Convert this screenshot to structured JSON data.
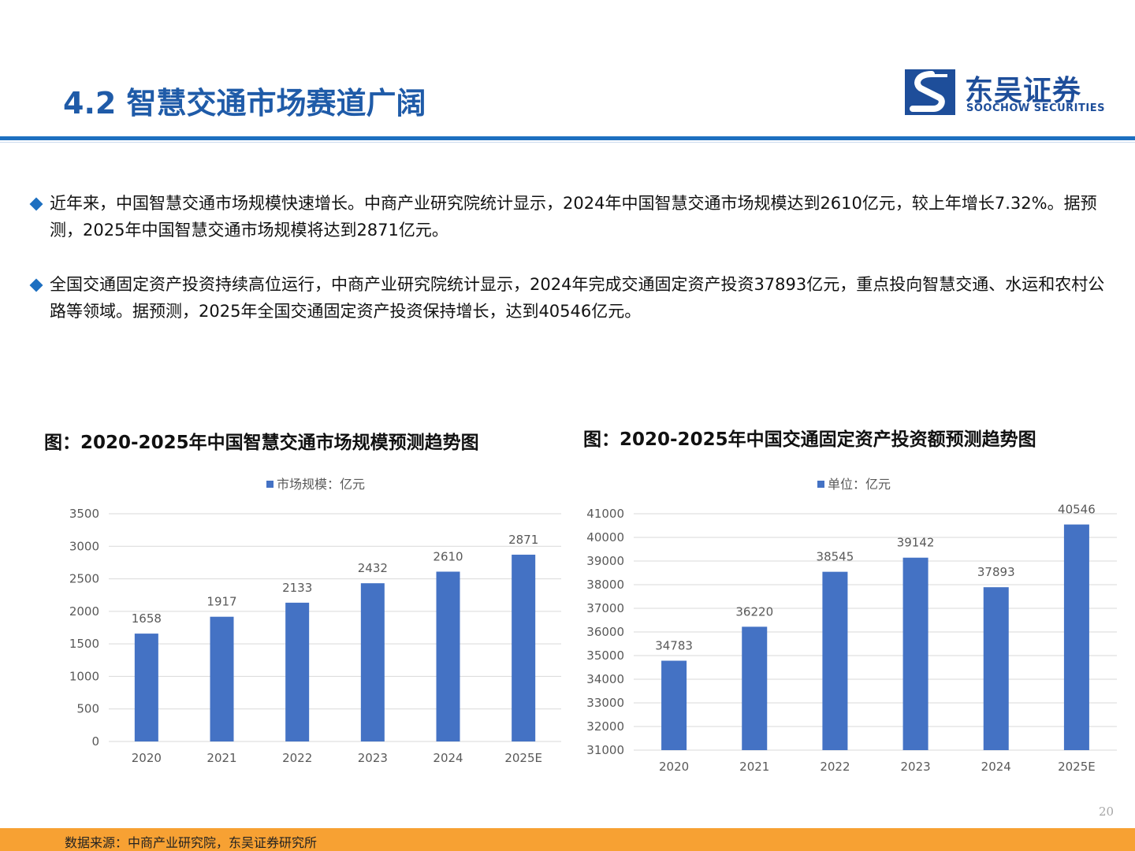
{
  "page": {
    "title": "4.2 智慧交通市场赛道广阔",
    "page_number": "20"
  },
  "logo": {
    "cn": "东吴证券",
    "en": "SOOCHOW SECURITIES"
  },
  "bullets": [
    {
      "text": "近年来，中国智慧交通市场规模快速增长。中商产业研究院统计显示，2024年中国智慧交通市场规模达到2610亿元，较上年增长7.32%。据预测，2025年中国智慧交通市场规模将达到2871亿元。"
    },
    {
      "text": "全国交通固定资产投资持续高位运行，中商产业研究院统计显示，2024年完成交通固定资产投资37893亿元，重点投向智慧交通、水运和农村公路等领域。据预测，2025年全国交通固定资产投资保持增长，达到40546亿元。"
    }
  ],
  "footer": {
    "source": "数据来源：中商产业研究院，东吴证券研究所"
  },
  "colors": {
    "accent": "#1d6fc0",
    "bar": "#4472c4",
    "footer": "#f7a133",
    "title": "#1f5ba8"
  },
  "chart_data": [
    {
      "type": "bar",
      "title": "图：2020-2025年中国智慧交通市场规模预测趋势图",
      "categories": [
        "2020",
        "2021",
        "2022",
        "2023",
        "2024",
        "2025E"
      ],
      "series": [
        {
          "name": "市场规模：亿元",
          "values": [
            1658,
            1917,
            2133,
            2432,
            2610,
            2871
          ]
        }
      ],
      "ylim": [
        0,
        3500
      ],
      "yticks": [
        0,
        500,
        1000,
        1500,
        2000,
        2500,
        3000,
        3500
      ],
      "grid": true,
      "legend": "top"
    },
    {
      "type": "bar",
      "title": "图：2020-2025年中国交通固定资产投资额预测趋势图",
      "categories": [
        "2020",
        "2021",
        "2022",
        "2023",
        "2024",
        "2025E"
      ],
      "series": [
        {
          "name": "单位：亿元",
          "values": [
            34783,
            36220,
            38545,
            39142,
            37893,
            40546
          ]
        }
      ],
      "ylim": [
        31000,
        41000
      ],
      "yticks": [
        31000,
        32000,
        33000,
        34000,
        35000,
        36000,
        37000,
        38000,
        39000,
        40000,
        41000
      ],
      "grid": true,
      "legend": "top"
    }
  ]
}
